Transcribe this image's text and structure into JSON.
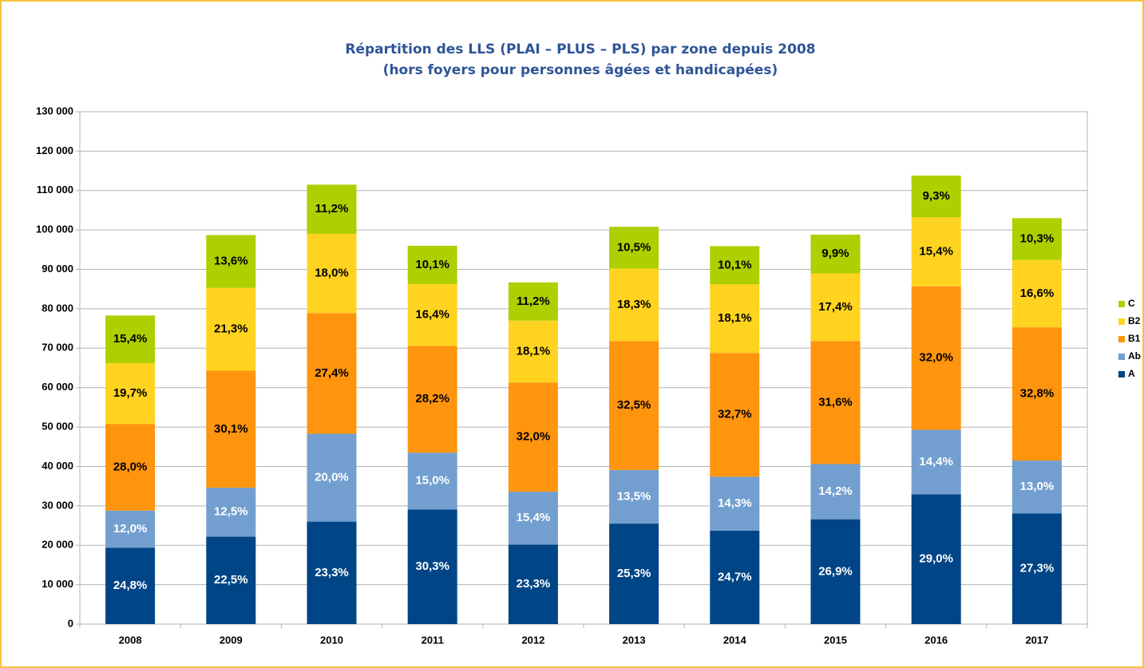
{
  "chart_data": {
    "type": "stacked_bar",
    "title": "Répartition des LLS (PLAI – PLUS – PLS) par zone depuis 2008",
    "subtitle": "(hors foyers pour personnes âgées et handicapées)",
    "categories": [
      "2008",
      "2009",
      "2010",
      "2011",
      "2012",
      "2013",
      "2014",
      "2015",
      "2016",
      "2017"
    ],
    "series": [
      {
        "name": "A",
        "color": "#004586",
        "values": [
          19400,
          22200,
          26000,
          29100,
          20200,
          25500,
          23700,
          26600,
          32900,
          28100
        ],
        "value_labels": [
          "24,8%",
          "22,5%",
          "23,3%",
          "30,3%",
          "23,3%",
          "25,3%",
          "24,7%",
          "26,9%",
          "29,0%",
          "27,3%"
        ]
      },
      {
        "name": "Ab",
        "color": "#729fcf",
        "values": [
          9400,
          12400,
          22300,
          14400,
          13400,
          13600,
          13700,
          14000,
          16400,
          13400
        ],
        "value_labels": [
          "12,0%",
          "12,5%",
          "20,0%",
          "15,0%",
          "15,4%",
          "13,5%",
          "14,3%",
          "14,2%",
          "14,4%",
          "13,0%"
        ]
      },
      {
        "name": "B1",
        "color": "#ff950e",
        "values": [
          22000,
          29700,
          30600,
          27100,
          27700,
          32700,
          31400,
          31200,
          36400,
          33800
        ],
        "value_labels": [
          "28,0%",
          "30,1%",
          "27,4%",
          "28,2%",
          "32,0%",
          "32,5%",
          "32,7%",
          "31,6%",
          "32,0%",
          "32,8%"
        ]
      },
      {
        "name": "B2",
        "color": "#ffd320",
        "values": [
          15400,
          21000,
          20100,
          15700,
          15700,
          18400,
          17400,
          17200,
          17500,
          17100
        ],
        "value_labels": [
          "19,7%",
          "21,3%",
          "18,0%",
          "16,4%",
          "18,1%",
          "18,3%",
          "18,1%",
          "17,4%",
          "15,4%",
          "16,6%"
        ]
      },
      {
        "name": "C",
        "color": "#aecf00",
        "values": [
          12100,
          13400,
          12500,
          9700,
          9700,
          10600,
          9700,
          9800,
          10600,
          10600
        ],
        "value_labels": [
          "15,4%",
          "13,6%",
          "11,2%",
          "10,1%",
          "11,2%",
          "10,5%",
          "10,1%",
          "9,9%",
          "9,3%",
          "10,3%"
        ]
      }
    ],
    "ylim": [
      0,
      130000
    ],
    "yticks": [
      0,
      {
        "value": 10000,
        "label": "10 000"
      },
      {
        "value": 20000,
        "label": "20 000"
      },
      {
        "value": 30000,
        "label": "30 000"
      },
      {
        "value": 40000,
        "label": "40 000"
      },
      {
        "value": 50000,
        "label": "50 000"
      },
      {
        "value": 60000,
        "label": "60 000"
      },
      {
        "value": 70000,
        "label": "70 000"
      },
      {
        "value": 80000,
        "label": "80 000"
      },
      {
        "value": 90000,
        "label": "90 000"
      },
      {
        "value": 100000,
        "label": "100 000"
      },
      {
        "value": 110000,
        "label": "110 000"
      },
      {
        "value": 120000,
        "label": "120 000"
      },
      {
        "value": 130000,
        "label": "130 000"
      }
    ],
    "grid": true,
    "legend": "right"
  }
}
